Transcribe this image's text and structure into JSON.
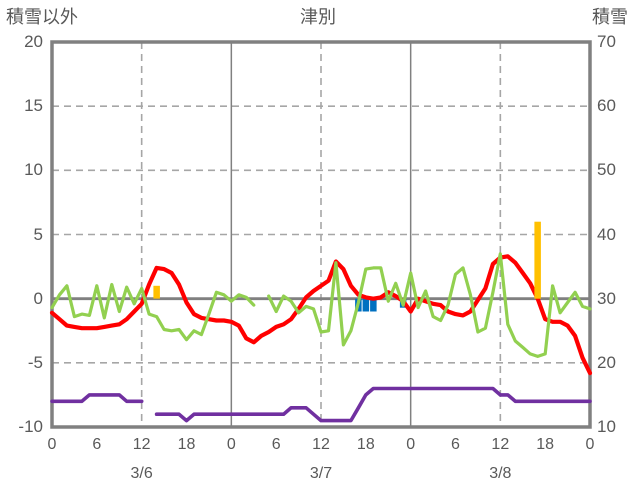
{
  "colors": {
    "red_line": "#FF0000",
    "green_line": "#92D050",
    "purple_line": "#7030A0",
    "orange_bar": "#FFC000",
    "blue_bar": "#0070C0",
    "grid": "#A6A6A6",
    "axis_line": "#808080",
    "zero_line": "#808080",
    "text": "#595959"
  },
  "chart_data": {
    "type": "line",
    "title": "津別",
    "left_axis": {
      "label": "積雪以外",
      "min": -10,
      "max": 20,
      "tick_step": 5,
      "ticks": [
        20,
        15,
        10,
        5,
        0,
        -5,
        -10
      ]
    },
    "right_axis": {
      "label": "積雪",
      "min": 10,
      "max": 70,
      "tick_step": 10,
      "ticks": [
        70,
        60,
        50,
        40,
        30,
        20,
        10
      ]
    },
    "x_axis": {
      "hours_total": 72,
      "label_interval": 6,
      "hour_labels": [
        "0",
        "6",
        "12",
        "18",
        "0",
        "6",
        "12",
        "18",
        "0",
        "6",
        "12",
        "18",
        "0"
      ],
      "date_labels": [
        "3/6",
        "3/7",
        "3/8"
      ],
      "dashed_gridline_hours": [
        12,
        36,
        60
      ],
      "solid_gridline_hours": [
        24,
        48
      ]
    },
    "grid": {
      "horizontal": "dashed",
      "zero_line": "solid"
    },
    "legend": "none",
    "paint_order": [
      "blue-bars",
      "red-line",
      "orange-bars",
      "green-line",
      "purple-line"
    ],
    "bars": [
      {
        "id": "blue-bars",
        "color": "#0070C0",
        "axis": "left",
        "points": [
          {
            "hour": 41,
            "value": -1.0
          },
          {
            "hour": 42,
            "value": -1.0
          },
          {
            "hour": 43,
            "value": -1.0
          },
          {
            "hour": 47,
            "value": -0.7
          }
        ]
      },
      {
        "id": "orange-bars",
        "color": "#FFC000",
        "axis": "left",
        "points": [
          {
            "hour": 14,
            "value": 1.0
          },
          {
            "hour": 65,
            "value": 6.0
          }
        ]
      }
    ],
    "series": [
      {
        "id": "red-line",
        "color": "#FF0000",
        "axis": "left",
        "width": 4.2,
        "values": [
          -1.1,
          -1.6,
          -2.1,
          -2.2,
          -2.3,
          -2.3,
          -2.3,
          -2.2,
          -2.1,
          -2.0,
          -1.6,
          -1.0,
          -0.4,
          1.1,
          2.4,
          2.3,
          2.0,
          1.1,
          -0.3,
          -1.2,
          -1.5,
          -1.6,
          -1.7,
          -1.7,
          -1.8,
          -2.1,
          -3.1,
          -3.4,
          -2.9,
          -2.6,
          -2.2,
          -2.0,
          -1.6,
          -0.8,
          0.1,
          0.6,
          1.0,
          1.4,
          2.9,
          2.3,
          1.0,
          0.3,
          0.1,
          0.0,
          0.1,
          0.5,
          0.2,
          -0.2,
          -1.0,
          0.0,
          -0.2,
          -0.4,
          -0.5,
          -1.0,
          -1.2,
          -1.3,
          -1.0,
          -0.1,
          0.8,
          2.7,
          3.2,
          3.3,
          2.8,
          2.0,
          1.2,
          0.0,
          -1.6,
          -1.8,
          -1.8,
          -2.1,
          -2.9,
          -4.6,
          -5.8
        ]
      },
      {
        "id": "green-line",
        "color": "#92D050",
        "axis": "left",
        "width": 3.2,
        "values": [
          -0.7,
          0.3,
          1.0,
          -1.4,
          -1.2,
          -1.3,
          1.0,
          -1.5,
          1.1,
          -1.0,
          0.9,
          -0.4,
          0.8,
          -1.2,
          -1.4,
          -2.4,
          -2.5,
          -2.4,
          -3.2,
          -2.5,
          -2.8,
          -1.2,
          0.5,
          0.3,
          -0.2,
          0.3,
          0.1,
          -0.5,
          null,
          0.2,
          -1.0,
          0.2,
          -0.2,
          -1.1,
          -0.6,
          -0.8,
          -2.6,
          -2.5,
          2.8,
          -3.6,
          -2.5,
          -0.3,
          2.3,
          2.4,
          2.4,
          -0.2,
          1.2,
          -0.5,
          2.0,
          -0.7,
          0.6,
          -1.4,
          -1.7,
          -0.5,
          1.9,
          2.4,
          0.3,
          -2.6,
          -2.3,
          0.5,
          3.5,
          -2.0,
          -3.3,
          -3.8,
          -4.3,
          -4.5,
          -4.3,
          1.0,
          -1.1,
          -0.3,
          0.5,
          -0.6,
          -0.8
        ]
      },
      {
        "id": "purple-line",
        "color": "#7030A0",
        "axis": "right",
        "width": 3.6,
        "values": [
          14,
          14,
          14,
          14,
          14,
          15,
          15,
          15,
          15,
          15,
          14,
          14,
          14,
          null,
          12,
          12,
          12,
          12,
          11,
          12,
          12,
          12,
          12,
          12,
          12,
          12,
          12,
          12,
          12,
          12,
          12,
          12,
          13,
          13,
          13,
          12,
          11,
          11,
          11,
          11,
          11,
          13,
          15,
          16,
          16,
          16,
          16,
          16,
          16,
          16,
          16,
          16,
          16,
          16,
          16,
          16,
          16,
          16,
          16,
          16,
          15,
          15,
          14,
          14,
          14,
          14,
          14,
          14,
          14,
          14,
          14,
          14,
          14
        ]
      }
    ]
  }
}
